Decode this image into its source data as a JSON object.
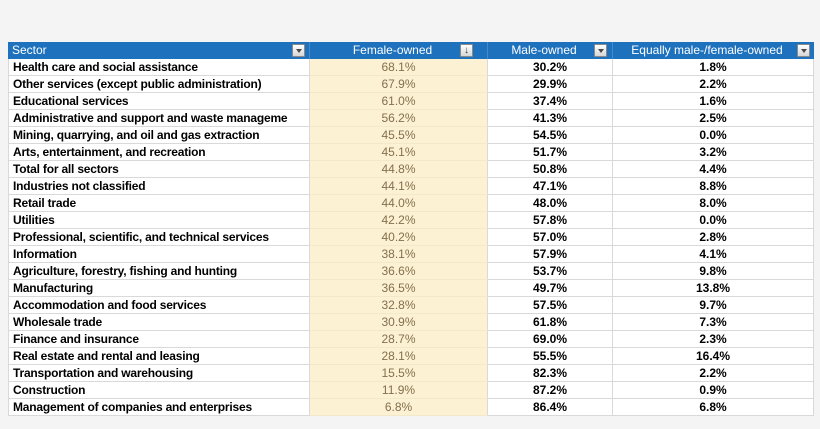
{
  "table": {
    "columns": [
      {
        "label": "Sector",
        "filter_icon": "dropdown"
      },
      {
        "label": "Female-owned",
        "filter_icon": "sort-descending-applied"
      },
      {
        "label": "Male-owned",
        "filter_icon": "dropdown"
      },
      {
        "label": "Equally male-/female-owned",
        "filter_icon": "dropdown"
      }
    ],
    "rows": [
      {
        "sector": "Health care and social assistance",
        "female": "68.1%",
        "male": "30.2%",
        "equally": "1.8%"
      },
      {
        "sector": "Other services (except public administration)",
        "female": "67.9%",
        "male": "29.9%",
        "equally": "2.2%"
      },
      {
        "sector": "Educational services",
        "female": "61.0%",
        "male": "37.4%",
        "equally": "1.6%"
      },
      {
        "sector": "Administrative and support and waste manageme",
        "female": "56.2%",
        "male": "41.3%",
        "equally": "2.5%"
      },
      {
        "sector": "Mining, quarrying, and oil and gas extraction",
        "female": "45.5%",
        "male": "54.5%",
        "equally": "0.0%"
      },
      {
        "sector": "Arts, entertainment, and recreation",
        "female": "45.1%",
        "male": "51.7%",
        "equally": "3.2%"
      },
      {
        "sector": "Total for all sectors",
        "female": "44.8%",
        "male": "50.8%",
        "equally": "4.4%"
      },
      {
        "sector": "Industries not classified",
        "female": "44.1%",
        "male": "47.1%",
        "equally": "8.8%"
      },
      {
        "sector": "Retail trade",
        "female": "44.0%",
        "male": "48.0%",
        "equally": "8.0%"
      },
      {
        "sector": "Utilities",
        "female": "42.2%",
        "male": "57.8%",
        "equally": "0.0%"
      },
      {
        "sector": "Professional, scientific, and technical services",
        "female": "40.2%",
        "male": "57.0%",
        "equally": "2.8%"
      },
      {
        "sector": "Information",
        "female": "38.1%",
        "male": "57.9%",
        "equally": "4.1%"
      },
      {
        "sector": "Agriculture, forestry, fishing and hunting",
        "female": "36.6%",
        "male": "53.7%",
        "equally": "9.8%"
      },
      {
        "sector": "Manufacturing",
        "female": "36.5%",
        "male": "49.7%",
        "equally": "13.8%"
      },
      {
        "sector": "Accommodation and food services",
        "female": "32.8%",
        "male": "57.5%",
        "equally": "9.7%"
      },
      {
        "sector": "Wholesale trade",
        "female": "30.9%",
        "male": "61.8%",
        "equally": "7.3%"
      },
      {
        "sector": "Finance and insurance",
        "female": "28.7%",
        "male": "69.0%",
        "equally": "2.3%"
      },
      {
        "sector": "Real estate and rental and leasing",
        "female": "28.1%",
        "male": "55.5%",
        "equally": "16.4%"
      },
      {
        "sector": "Transportation and warehousing",
        "female": "15.5%",
        "male": "82.3%",
        "equally": "2.2%"
      },
      {
        "sector": "Construction",
        "female": "11.9%",
        "male": "87.2%",
        "equally": "0.9%"
      },
      {
        "sector": "Management of companies and enterprises",
        "female": "6.8%",
        "male": "86.4%",
        "equally": "6.8%"
      }
    ]
  },
  "colors": {
    "canvas_background": "#f4f4f4",
    "header_background": "#1e71bd",
    "header_text": "#ffffff",
    "female_column_background": "#fcf1d2",
    "female_column_text": "#82704e",
    "gridline": "#d9d9d9",
    "data_text": "#000000"
  },
  "sort_indicator": "↓"
}
